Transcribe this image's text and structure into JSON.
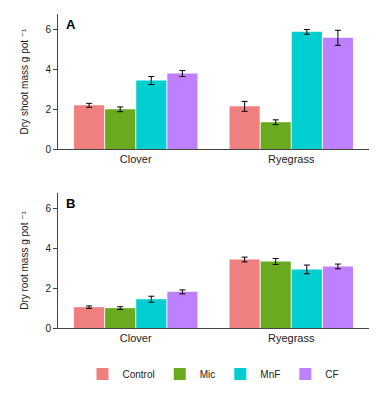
{
  "chart_data": [
    {
      "type": "bar",
      "categories": [
        "Clover",
        "Ryegrass"
      ],
      "series": [
        {
          "name": "Control",
          "color": "#F08080",
          "values": [
            2.2,
            2.15
          ],
          "errors": [
            0.1,
            0.25
          ]
        },
        {
          "name": "Mic",
          "color": "#6aaa1e",
          "values": [
            2.0,
            1.35
          ],
          "errors": [
            0.12,
            0.12
          ]
        },
        {
          "name": "MnF",
          "color": "#00CED1",
          "values": [
            3.45,
            5.9
          ],
          "errors": [
            0.2,
            0.12
          ]
        },
        {
          "name": "CF",
          "color": "#BF80FF",
          "values": [
            3.8,
            5.6
          ],
          "errors": [
            0.15,
            0.38
          ]
        }
      ],
      "ylabel": "Dry shoot mass g pot ⁻¹",
      "ylim": [
        0,
        6.8
      ],
      "yticks": [
        0,
        2,
        4,
        6
      ],
      "annotations": [
        "A"
      ],
      "grid": false,
      "legend": "bottom"
    },
    {
      "type": "bar",
      "categories": [
        "Clover",
        "Ryegrass"
      ],
      "series": [
        {
          "name": "Control",
          "color": "#F08080",
          "values": [
            1.05,
            3.45
          ],
          "errors": [
            0.06,
            0.12
          ]
        },
        {
          "name": "Mic",
          "color": "#6aaa1e",
          "values": [
            1.0,
            3.35
          ],
          "errors": [
            0.07,
            0.15
          ]
        },
        {
          "name": "MnF",
          "color": "#00CED1",
          "values": [
            1.45,
            2.95
          ],
          "errors": [
            0.15,
            0.22
          ]
        },
        {
          "name": "CF",
          "color": "#BF80FF",
          "values": [
            1.82,
            3.1
          ],
          "errors": [
            0.1,
            0.12
          ]
        }
      ],
      "ylabel": "Dry root mass g pot ⁻¹",
      "ylim": [
        0,
        6.8
      ],
      "yticks": [
        0,
        2,
        4,
        6
      ],
      "annotations": [
        "B"
      ],
      "grid": false
    }
  ]
}
